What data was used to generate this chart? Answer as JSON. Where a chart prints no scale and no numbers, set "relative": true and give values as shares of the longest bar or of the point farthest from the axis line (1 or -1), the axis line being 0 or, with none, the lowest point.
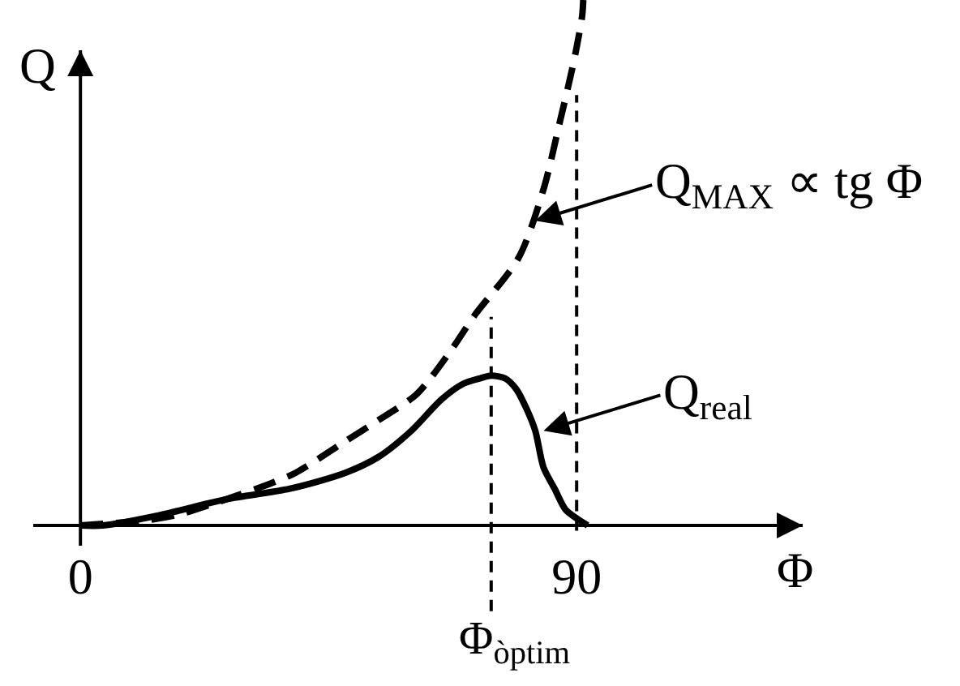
{
  "chart_data": {
    "type": "line",
    "relative": true,
    "xlabel": "Φ",
    "ylabel": "Q",
    "xlim": [
      -9,
      131
    ],
    "xticks": [
      0,
      90
    ],
    "series": [
      {
        "color": "#000000",
        "line_style": "dashed",
        "x": [
          0,
          12,
          17.5,
          26.5,
          34.5,
          39,
          48,
          54,
          61,
          67,
          71.5,
          79.5,
          84,
          87,
          89,
          90,
          91,
          91.2
        ],
        "values": [
          0,
          0.01,
          0.02,
          0.05,
          0.08,
          0.1,
          0.16,
          0.2,
          0.25,
          0.33,
          0.4,
          0.51,
          0.64,
          0.77,
          0.86,
          0.91,
          0.97,
          1
        ]
      },
      {
        "color": "#000000",
        "line_style": "solid",
        "x": [
          0,
          4,
          14.5,
          26.5,
          38,
          48,
          54,
          60,
          65.5,
          69.5,
          72.5,
          74.5,
          77,
          79,
          81,
          82.5,
          84,
          86,
          88,
          90.5,
          92
        ],
        "values": [
          0,
          0,
          0.02,
          0.05,
          0.07,
          0.1,
          0.13,
          0.18,
          0.24,
          0.27,
          0.28,
          0.285,
          0.28,
          0.26,
          0.22,
          0.18,
          0.11,
          0.07,
          0.03,
          0.01,
          0
        ]
      }
    ],
    "ref_lines": [
      {
        "axis": "x",
        "value": 74.5,
        "label": "Φ$_{òptim}$",
        "color": "#000000",
        "line_style": "dashed"
      },
      {
        "axis": "x",
        "value": 90,
        "color": "#000000",
        "line_style": "dashed"
      }
    ],
    "annotations": [
      {
        "text": "Q$_{MAX}$ ∝ tg Φ",
        "x": 82.5,
        "y": 0.58
      },
      {
        "text": "Q$_{real}$",
        "x": 84,
        "y": 0.18
      }
    ]
  }
}
